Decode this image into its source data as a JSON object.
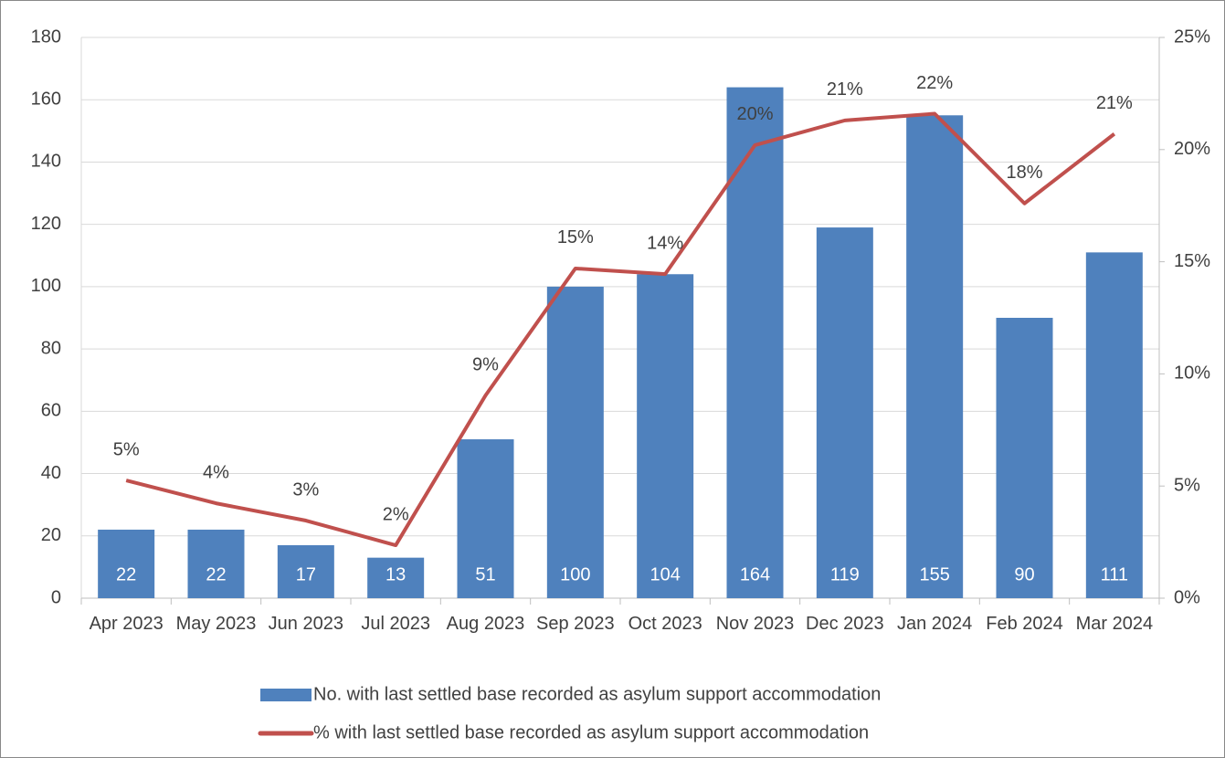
{
  "chart_data": {
    "type": "bar",
    "categories": [
      "Apr 2023",
      "May 2023",
      "Jun 2023",
      "Jul 2023",
      "Aug 2023",
      "Sep 2023",
      "Oct 2023",
      "Nov 2023",
      "Dec 2023",
      "Jan 2024",
      "Feb 2024",
      "Mar 2024"
    ],
    "series": [
      {
        "name": "No. with last settled base recorded as asylum support accommodation",
        "type": "bar",
        "color": "#4f81bd",
        "values": [
          22,
          22,
          17,
          13,
          51,
          100,
          104,
          164,
          119,
          155,
          90,
          111
        ]
      },
      {
        "name": "% with last settled base recorded as asylum support accommodation",
        "type": "line",
        "axis": "y2",
        "color": "#c0504d",
        "values": [
          5.25,
          4.23,
          3.46,
          2.36,
          9.04,
          14.7,
          14.45,
          20.2,
          21.3,
          21.6,
          17.6,
          20.7
        ],
        "value_labels": [
          "5%",
          "4%",
          "3%",
          "2%",
          "9%",
          "15%",
          "14%",
          "20%",
          "21%",
          "22%",
          "18%",
          "21%"
        ]
      }
    ],
    "ylim": [
      0,
      180
    ],
    "yticks": [
      0,
      20,
      40,
      60,
      80,
      100,
      120,
      140,
      160,
      180
    ],
    "y2lim": [
      0,
      25
    ],
    "y2ticks": [
      {
        "value": 0,
        "label": "0%"
      },
      {
        "value": 5,
        "label": "5%"
      },
      {
        "value": 10,
        "label": "10%"
      },
      {
        "value": 15,
        "label": "15%"
      },
      {
        "value": 20,
        "label": "20%"
      },
      {
        "value": 25,
        "label": "25%"
      }
    ],
    "grid": true,
    "legend": "bottom"
  }
}
